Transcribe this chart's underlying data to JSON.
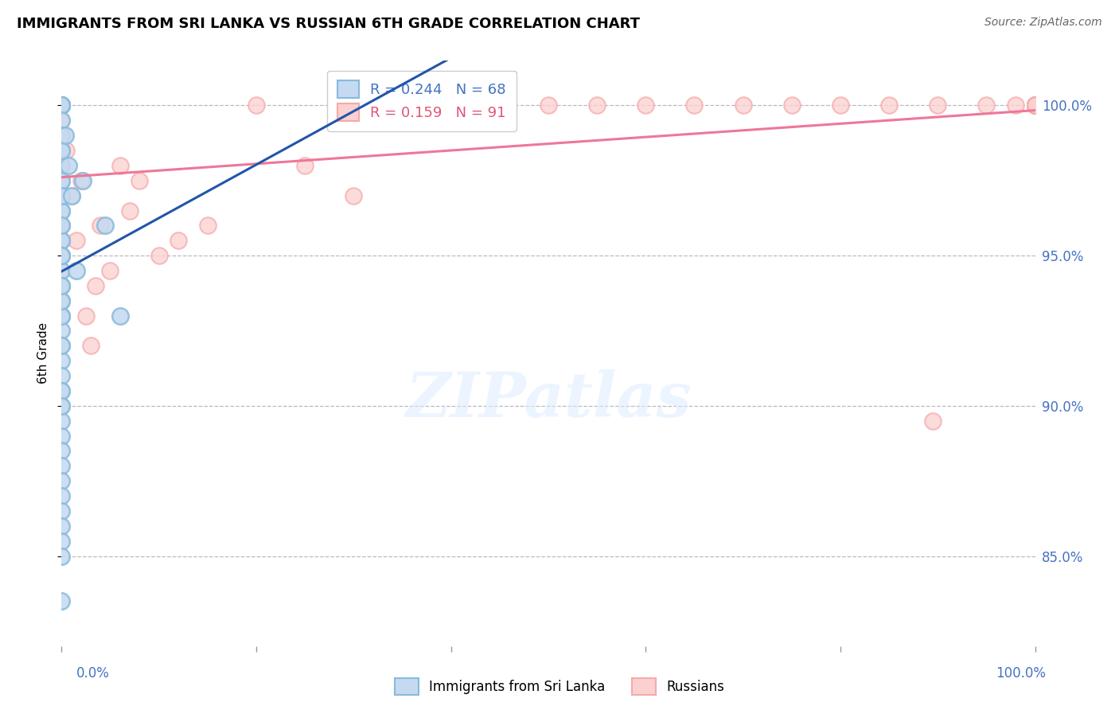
{
  "title": "IMMIGRANTS FROM SRI LANKA VS RUSSIAN 6TH GRADE CORRELATION CHART",
  "source": "Source: ZipAtlas.com",
  "ylabel": "6th Grade",
  "watermark": "ZIPatlas",
  "blue_r": "0.244",
  "blue_n": "68",
  "pink_r": "0.159",
  "pink_n": "91",
  "blue_edge_color": "#88BBDD",
  "pink_edge_color": "#F4AAAA",
  "blue_line_color": "#2255AA",
  "pink_line_color": "#EE7799",
  "blue_fill_color": "#C5D9F0",
  "pink_fill_color": "#FBD0D0",
  "legend_text_blue": "#4472C4",
  "legend_text_pink": "#E05575",
  "right_axis_color": "#4472C4",
  "bottom_axis_color": "#4472C4",
  "grid_color": "#BBBBBB",
  "xlim": [
    0,
    100
  ],
  "ylim": [
    82.0,
    101.5
  ],
  "yticks": [
    85.0,
    90.0,
    95.0,
    100.0
  ],
  "blue_scatter_x": [
    0.0,
    0.0,
    0.0,
    0.0,
    0.0,
    0.0,
    0.0,
    0.0,
    0.0,
    0.0,
    0.0,
    0.0,
    0.0,
    0.0,
    0.0,
    0.0,
    0.0,
    0.0,
    0.0,
    0.0,
    0.0,
    0.0,
    0.0,
    0.0,
    0.0,
    0.0,
    0.0,
    0.0,
    0.0,
    0.0,
    0.0,
    0.0,
    0.0,
    0.0,
    0.0,
    0.0,
    0.0,
    0.0,
    0.0,
    0.0,
    0.0,
    0.0,
    0.0,
    0.0,
    0.0,
    0.0,
    0.0,
    0.0,
    0.0,
    0.0,
    0.0,
    0.0,
    0.0,
    0.0,
    0.0,
    0.0,
    0.0,
    0.0,
    0.0,
    0.0,
    0.0,
    0.4,
    0.7,
    1.0,
    1.5,
    2.2,
    4.5,
    6.0
  ],
  "blue_scatter_y": [
    100.0,
    100.0,
    100.0,
    100.0,
    100.0,
    100.0,
    100.0,
    100.0,
    100.0,
    100.0,
    100.0,
    99.5,
    99.0,
    98.5,
    98.0,
    98.0,
    97.5,
    97.0,
    97.0,
    96.5,
    96.0,
    95.5,
    95.0,
    95.0,
    94.5,
    94.0,
    94.0,
    93.5,
    93.0,
    93.0,
    92.5,
    92.0,
    91.5,
    91.0,
    90.5,
    90.0,
    89.5,
    89.0,
    88.5,
    88.0,
    87.5,
    87.0,
    86.5,
    86.0,
    85.5,
    85.0,
    97.5,
    96.5,
    95.5,
    95.0,
    93.0,
    90.5,
    98.5,
    97.0,
    95.0,
    96.0,
    93.5,
    92.0,
    94.0,
    90.0,
    83.5,
    99.0,
    98.0,
    97.0,
    94.5,
    97.5,
    96.0,
    93.0
  ],
  "pink_scatter_x": [
    0.0,
    0.0,
    0.0,
    0.0,
    0.0,
    0.0,
    0.0,
    0.0,
    0.0,
    0.0,
    0.0,
    0.0,
    0.0,
    0.0,
    0.0,
    0.0,
    0.0,
    0.0,
    0.0,
    0.0,
    0.0,
    0.0,
    0.0,
    0.0,
    0.0,
    0.0,
    0.0,
    0.0,
    0.0,
    0.0,
    0.0,
    0.0,
    0.0,
    0.0,
    0.0,
    0.0,
    0.5,
    1.0,
    1.5,
    2.0,
    2.5,
    3.0,
    3.5,
    4.0,
    5.0,
    6.0,
    7.0,
    8.0,
    10.0,
    12.0,
    15.0,
    20.0,
    25.0,
    30.0,
    35.0,
    40.0,
    45.0,
    50.0,
    55.0,
    60.0,
    65.0,
    70.0,
    75.0,
    80.0,
    85.0,
    90.0,
    95.0,
    98.0,
    100.0,
    100.0,
    100.0,
    100.0,
    100.0,
    100.0,
    100.0,
    100.0,
    100.0,
    100.0,
    100.0,
    100.0,
    100.0,
    100.0,
    100.0,
    100.0,
    100.0,
    100.0,
    100.0,
    100.0,
    100.0,
    100.0,
    89.5
  ],
  "pink_scatter_y": [
    100.0,
    100.0,
    100.0,
    100.0,
    100.0,
    100.0,
    100.0,
    100.0,
    100.0,
    100.0,
    100.0,
    100.0,
    100.0,
    100.0,
    100.0,
    100.0,
    100.0,
    100.0,
    99.5,
    99.0,
    98.5,
    98.0,
    97.5,
    97.0,
    96.5,
    96.0,
    95.5,
    95.0,
    94.5,
    94.0,
    93.5,
    93.0,
    98.5,
    98.0,
    97.0,
    96.0,
    98.5,
    97.0,
    95.5,
    97.5,
    93.0,
    92.0,
    94.0,
    96.0,
    94.5,
    98.0,
    96.5,
    97.5,
    95.0,
    95.5,
    96.0,
    100.0,
    98.0,
    97.0,
    100.0,
    100.0,
    100.0,
    100.0,
    100.0,
    100.0,
    100.0,
    100.0,
    100.0,
    100.0,
    100.0,
    100.0,
    100.0,
    100.0,
    100.0,
    100.0,
    100.0,
    100.0,
    100.0,
    100.0,
    100.0,
    100.0,
    100.0,
    100.0,
    100.0,
    100.0,
    100.0,
    100.0,
    100.0,
    100.0,
    100.0,
    100.0,
    100.0,
    100.0,
    100.0,
    100.0,
    89.5
  ]
}
